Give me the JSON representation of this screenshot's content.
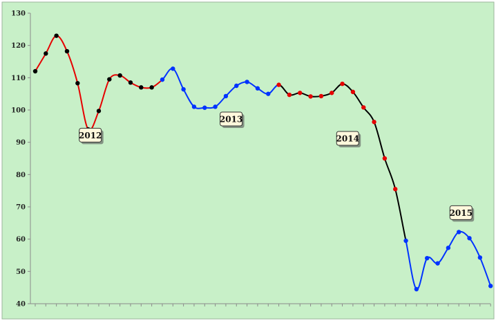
{
  "chart_data": {
    "type": "line",
    "title": "",
    "xlabel": "",
    "ylabel": "",
    "ylim": [
      40,
      130
    ],
    "yticks": [
      40,
      50,
      60,
      70,
      80,
      90,
      100,
      110,
      120,
      130
    ],
    "grid": false,
    "legend": "none",
    "colors": {
      "plot_background": "#c8f0c8",
      "axis": "#8a8a8a",
      "red": "#e60000",
      "blue": "#0033ff",
      "black": "#000000"
    },
    "values": [
      112,
      117.5,
      123,
      118.2,
      108.3,
      94,
      99.7,
      109.5,
      110.7,
      108.5,
      107,
      107,
      109.4,
      112.8,
      106.4,
      101,
      100.7,
      101,
      104.3,
      107.5,
      108.7,
      106.7,
      105,
      107.8,
      104.7,
      105.3,
      104.2,
      104.3,
      105.3,
      108.1,
      105.6,
      100.8,
      96.3,
      85,
      75.5,
      59.5,
      44.5,
      54.1,
      52.5,
      57.3,
      62.2,
      60.3,
      54.3,
      45.5
    ],
    "segments": [
      {
        "from": 0,
        "to": 4,
        "line_color": "#e60000",
        "marker_color": "#000000"
      },
      {
        "from": 4,
        "to": 12,
        "line_color": "#e60000",
        "marker_color": "#000000"
      },
      {
        "from": 12,
        "to": 23,
        "line_color": "#0033ff",
        "marker_color": "#0033ff"
      },
      {
        "from": 23,
        "to": 35,
        "line_color": "#000000",
        "marker_color": "#e60000"
      },
      {
        "from": 35,
        "to": 43,
        "line_color": "#0033ff",
        "marker_color": "#0033ff"
      }
    ],
    "annotations": [
      {
        "text": "2012",
        "x": 5.2,
        "y": 92
      },
      {
        "text": "2013",
        "x": 18.5,
        "y": 97
      },
      {
        "text": "2014",
        "x": 29.5,
        "y": 91
      },
      {
        "text": "2015",
        "x": 40.2,
        "y": 68
      }
    ]
  }
}
